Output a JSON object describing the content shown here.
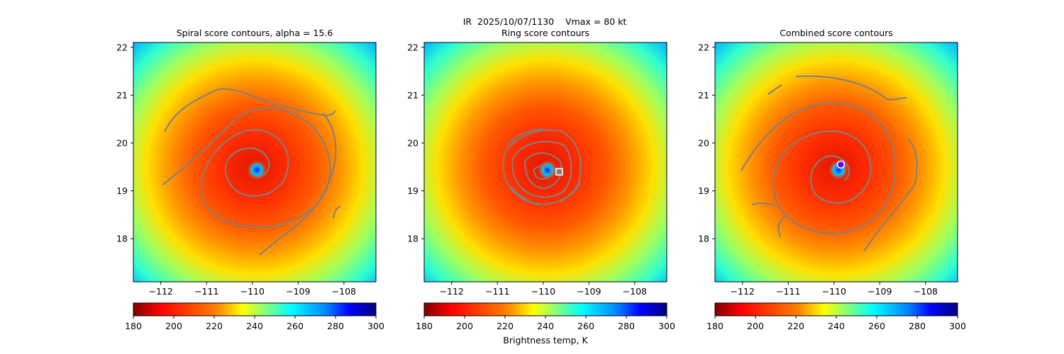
{
  "figure": {
    "suptitle": "IR  2025/10/07/1130    Vmax = 80 kt",
    "colorbar_label": "Brightness temp, K"
  },
  "colors": {
    "contour": "#808080",
    "colormap": [
      "#7f0000",
      "#ff0000",
      "#ff7f00",
      "#ffff00",
      "#7fff7f",
      "#00ffff",
      "#007fff",
      "#0000ff",
      "#00007f"
    ]
  },
  "chart_data": [
    {
      "type": "heatmap",
      "title": "Spiral score contours, alpha = 15.6",
      "x_ticks": [
        "−112",
        "−111",
        "−110",
        "−109",
        "−108"
      ],
      "y_ticks": [
        "22",
        "21",
        "20",
        "19",
        "18"
      ],
      "x_tick_values": [
        -112,
        -111,
        -110,
        -109,
        -108
      ],
      "y_tick_values": [
        22,
        21,
        20,
        19,
        18
      ],
      "xlim": [
        -112.6,
        -107.3
      ],
      "ylim": [
        17.1,
        22.1
      ],
      "colorbar": {
        "ticks": [
          "180",
          "200",
          "220",
          "240",
          "260",
          "280",
          "300"
        ],
        "range": [
          180,
          300
        ]
      },
      "marker": null
    },
    {
      "type": "heatmap",
      "title": "Ring score contours",
      "x_ticks": [
        "−112",
        "−111",
        "−110",
        "−109",
        "−108"
      ],
      "y_ticks": [
        "22",
        "21",
        "20",
        "19",
        "18"
      ],
      "x_tick_values": [
        -112,
        -111,
        -110,
        -109,
        -108
      ],
      "y_tick_values": [
        22,
        21,
        20,
        19,
        18
      ],
      "xlim": [
        -112.6,
        -107.3
      ],
      "ylim": [
        17.1,
        22.1
      ],
      "colorbar": {
        "ticks": [
          "180",
          "200",
          "220",
          "240",
          "260",
          "280",
          "300"
        ],
        "range": [
          180,
          300
        ]
      },
      "marker": {
        "shape": "square",
        "lon": -109.65,
        "lat": 19.4
      }
    },
    {
      "type": "heatmap",
      "title": "Combined score contours",
      "x_ticks": [
        "−112",
        "−111",
        "−110",
        "−109",
        "−108"
      ],
      "y_ticks": [
        "22",
        "21",
        "20",
        "19",
        "18"
      ],
      "x_tick_values": [
        -112,
        -111,
        -110,
        -109,
        -108
      ],
      "y_tick_values": [
        22,
        21,
        20,
        19,
        18
      ],
      "xlim": [
        -112.6,
        -107.3
      ],
      "ylim": [
        17.1,
        22.1
      ],
      "colorbar": {
        "ticks": [
          "180",
          "200",
          "220",
          "240",
          "260",
          "280",
          "300"
        ],
        "range": [
          180,
          300
        ]
      },
      "marker": {
        "shape": "circle",
        "lon": -109.85,
        "lat": 19.55
      }
    }
  ]
}
